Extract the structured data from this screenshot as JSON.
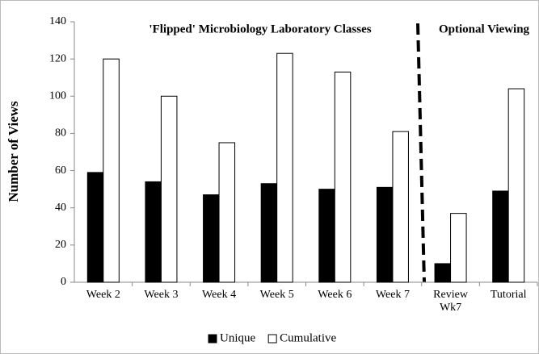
{
  "chart_data": {
    "type": "bar",
    "y_label": "Number of Views",
    "annotations": [
      "'Flipped' Microbiology Laboratory Classes",
      "Optional Viewing"
    ],
    "categories": [
      "Week 2",
      "Week 3",
      "Week 4",
      "Week 5",
      "Week 6",
      "Week 7",
      "Review Wk7",
      "Tutorial"
    ],
    "series": [
      {
        "name": "Unique",
        "color": "#000000",
        "values": [
          59,
          54,
          47,
          53,
          50,
          51,
          10,
          49
        ]
      },
      {
        "name": "Cumulative",
        "color": "#ffffff",
        "values": [
          120,
          100,
          75,
          123,
          113,
          81,
          37,
          104
        ]
      }
    ],
    "ylim": [
      0,
      140
    ],
    "yticks": [
      0,
      20,
      40,
      60,
      80,
      100,
      120,
      140
    ],
    "grid": false,
    "legend": "bottom"
  }
}
